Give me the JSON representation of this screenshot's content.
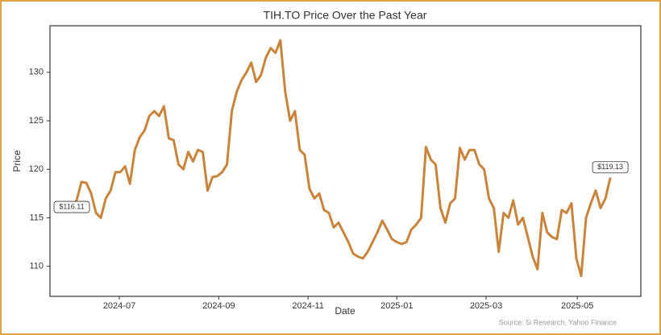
{
  "chart_data": {
    "type": "line",
    "title": "TIH.TO Price Over the Past Year",
    "xlabel": "Date",
    "ylabel": "Price",
    "source": "Source: 5i Research, Yahoo Finance",
    "color": "#c8843a",
    "values": [
      116.11,
      116.8,
      118.7,
      118.6,
      117.5,
      115.5,
      115.0,
      117.0,
      117.8,
      119.7,
      119.7,
      120.3,
      118.5,
      122.0,
      123.3,
      124.0,
      125.5,
      126.0,
      125.5,
      126.5,
      123.2,
      123.0,
      120.5,
      120.0,
      121.8,
      120.8,
      122.0,
      121.8,
      117.8,
      119.2,
      119.3,
      119.7,
      120.5,
      126.0,
      128.0,
      129.2,
      130.0,
      131.0,
      129.0,
      129.7,
      131.5,
      132.5,
      132.0,
      133.3,
      128.0,
      125.0,
      126.0,
      122.0,
      121.5,
      118.0,
      117.0,
      117.5,
      115.8,
      115.5,
      114.0,
      114.5,
      113.5,
      112.5,
      111.3,
      111.0,
      110.8,
      111.5,
      112.5,
      113.5,
      114.7,
      113.8,
      112.8,
      112.5,
      112.3,
      112.5,
      113.8,
      114.3,
      115.0,
      122.3,
      121.0,
      120.5,
      116.0,
      114.5,
      116.5,
      117.0,
      122.2,
      121.0,
      122.0,
      122.0,
      120.5,
      120.0,
      117.0,
      116.0,
      111.5,
      115.5,
      115.0,
      116.8,
      114.3,
      115.0,
      113.0,
      111.0,
      109.7,
      115.5,
      113.5,
      113.0,
      112.8,
      115.8,
      115.5,
      116.5,
      110.8,
      109.0,
      115.0,
      116.5,
      117.8,
      116.0,
      117.0,
      119.13
    ],
    "value_labels": [
      "$116.11",
      null,
      null,
      null,
      null,
      null,
      null,
      null,
      null,
      null,
      null,
      null,
      null,
      null,
      null,
      null,
      null,
      null,
      null,
      null,
      null,
      null,
      null,
      null,
      null,
      null,
      null,
      null,
      null,
      null,
      null,
      null,
      null,
      null,
      null,
      null,
      null,
      null,
      null,
      null,
      null,
      null,
      null,
      null,
      null,
      null,
      null,
      null,
      null,
      null,
      null,
      null,
      null,
      null,
      null,
      null,
      null,
      null,
      null,
      null,
      null,
      null,
      null,
      null,
      null,
      null,
      null,
      null,
      null,
      null,
      null,
      null,
      null,
      null,
      null,
      null,
      null,
      null,
      null,
      null,
      null,
      null,
      null,
      null,
      null,
      null,
      null,
      null,
      null,
      null,
      null,
      null,
      null,
      null,
      null,
      null,
      null,
      null,
      null,
      null,
      null,
      null,
      null,
      null,
      null,
      null,
      null,
      null,
      null,
      null,
      null,
      "$119.13"
    ],
    "xlim": [
      -4.49,
      117.3
    ],
    "xticks": [
      {
        "value": 9.8,
        "label": "2024-07"
      },
      {
        "value": 30.3,
        "label": "2024-09"
      },
      {
        "value": 48.7,
        "label": "2024-11"
      },
      {
        "value": 67.0,
        "label": "2025-01"
      },
      {
        "value": 85.4,
        "label": "2025-03"
      },
      {
        "value": 104.2,
        "label": "2025-05"
      }
    ],
    "ylim": [
      106.9,
      134.8
    ],
    "yticks": [
      110,
      115,
      120,
      125,
      130
    ],
    "grid": false
  }
}
